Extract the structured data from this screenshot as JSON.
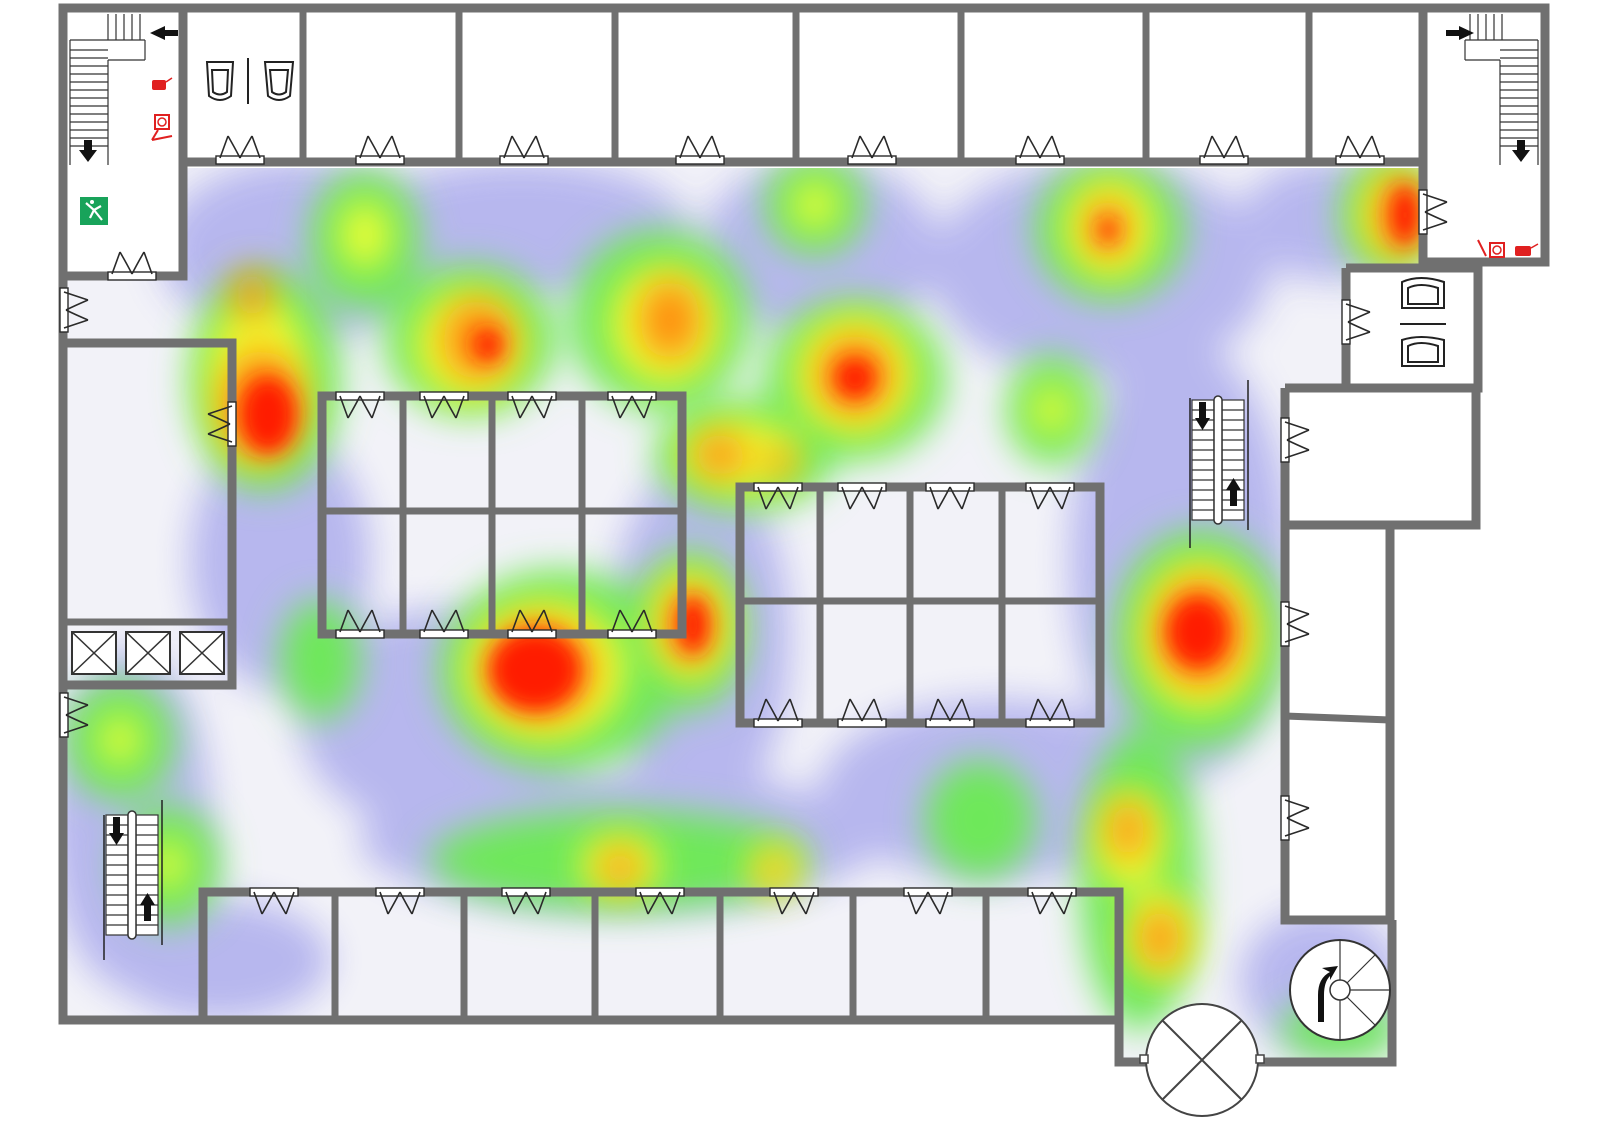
{
  "diagram": {
    "type": "floor-plan-heatmap",
    "colors": {
      "wall": "#707070",
      "heat_low": "#b0b0f0",
      "heat_mid_low": "#66ee55",
      "heat_mid": "#eeff33",
      "heat_high": "#ff8800",
      "heat_max": "#ff1a00",
      "exit_sign": "#18a35a",
      "extinguisher": "#e02020"
    },
    "icons": [
      "stair-icon",
      "escalator-icon",
      "elevator-icon",
      "toilet-icon",
      "fire-extinguisher-icon",
      "fire-hose-icon",
      "exit-sign-icon",
      "spiral-stair-icon",
      "revolving-door-icon",
      "door-icon"
    ]
  }
}
